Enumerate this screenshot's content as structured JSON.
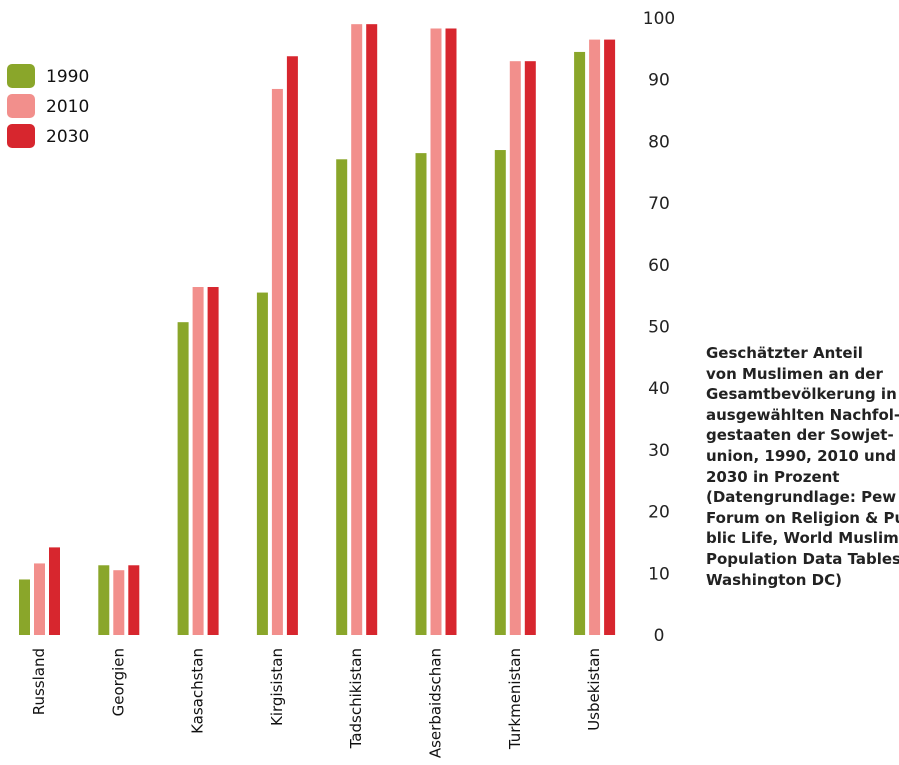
{
  "chart_data": {
    "type": "bar",
    "categories": [
      "Russland",
      "Georgien",
      "Kasachstan",
      "Kirgisistan",
      "Tadschikistan",
      "Aserbaidschan",
      "Turkmenistan",
      "Usbekistan"
    ],
    "series": [
      {
        "name": "1990",
        "color": "#8aa62a",
        "values": [
          9,
          11.3,
          50.7,
          55.5,
          77.1,
          78.1,
          78.6,
          94.5
        ]
      },
      {
        "name": "2010",
        "color": "#f28f8c",
        "values": [
          11.6,
          10.5,
          56.4,
          88.5,
          99,
          98.3,
          93,
          96.5
        ]
      },
      {
        "name": "2030",
        "color": "#d7262e",
        "values": [
          14.2,
          11.3,
          56.4,
          93.8,
          99,
          98.3,
          93,
          96.5
        ]
      }
    ],
    "ylim": [
      0,
      100
    ],
    "yticks": [
      "0",
      "10",
      "20",
      "30",
      "40",
      "50",
      "60",
      "70",
      "80",
      "90",
      "100"
    ],
    "grid": false,
    "legend_position": "top-left",
    "caption_lines": [
      "Geschätzter Anteil",
      "von Muslimen an der",
      "Gesamtbevölkerung in",
      "ausgewählten Nachfol-",
      "gestaaten der Sowjet-",
      "union, 1990, 2010 und",
      "2030 in Prozent",
      "(Datengrundlage: Pew",
      "Forum on Religion & Pu-",
      "blic Life, World Muslim",
      "Population Data Tables,",
      "Washington DC)"
    ]
  }
}
